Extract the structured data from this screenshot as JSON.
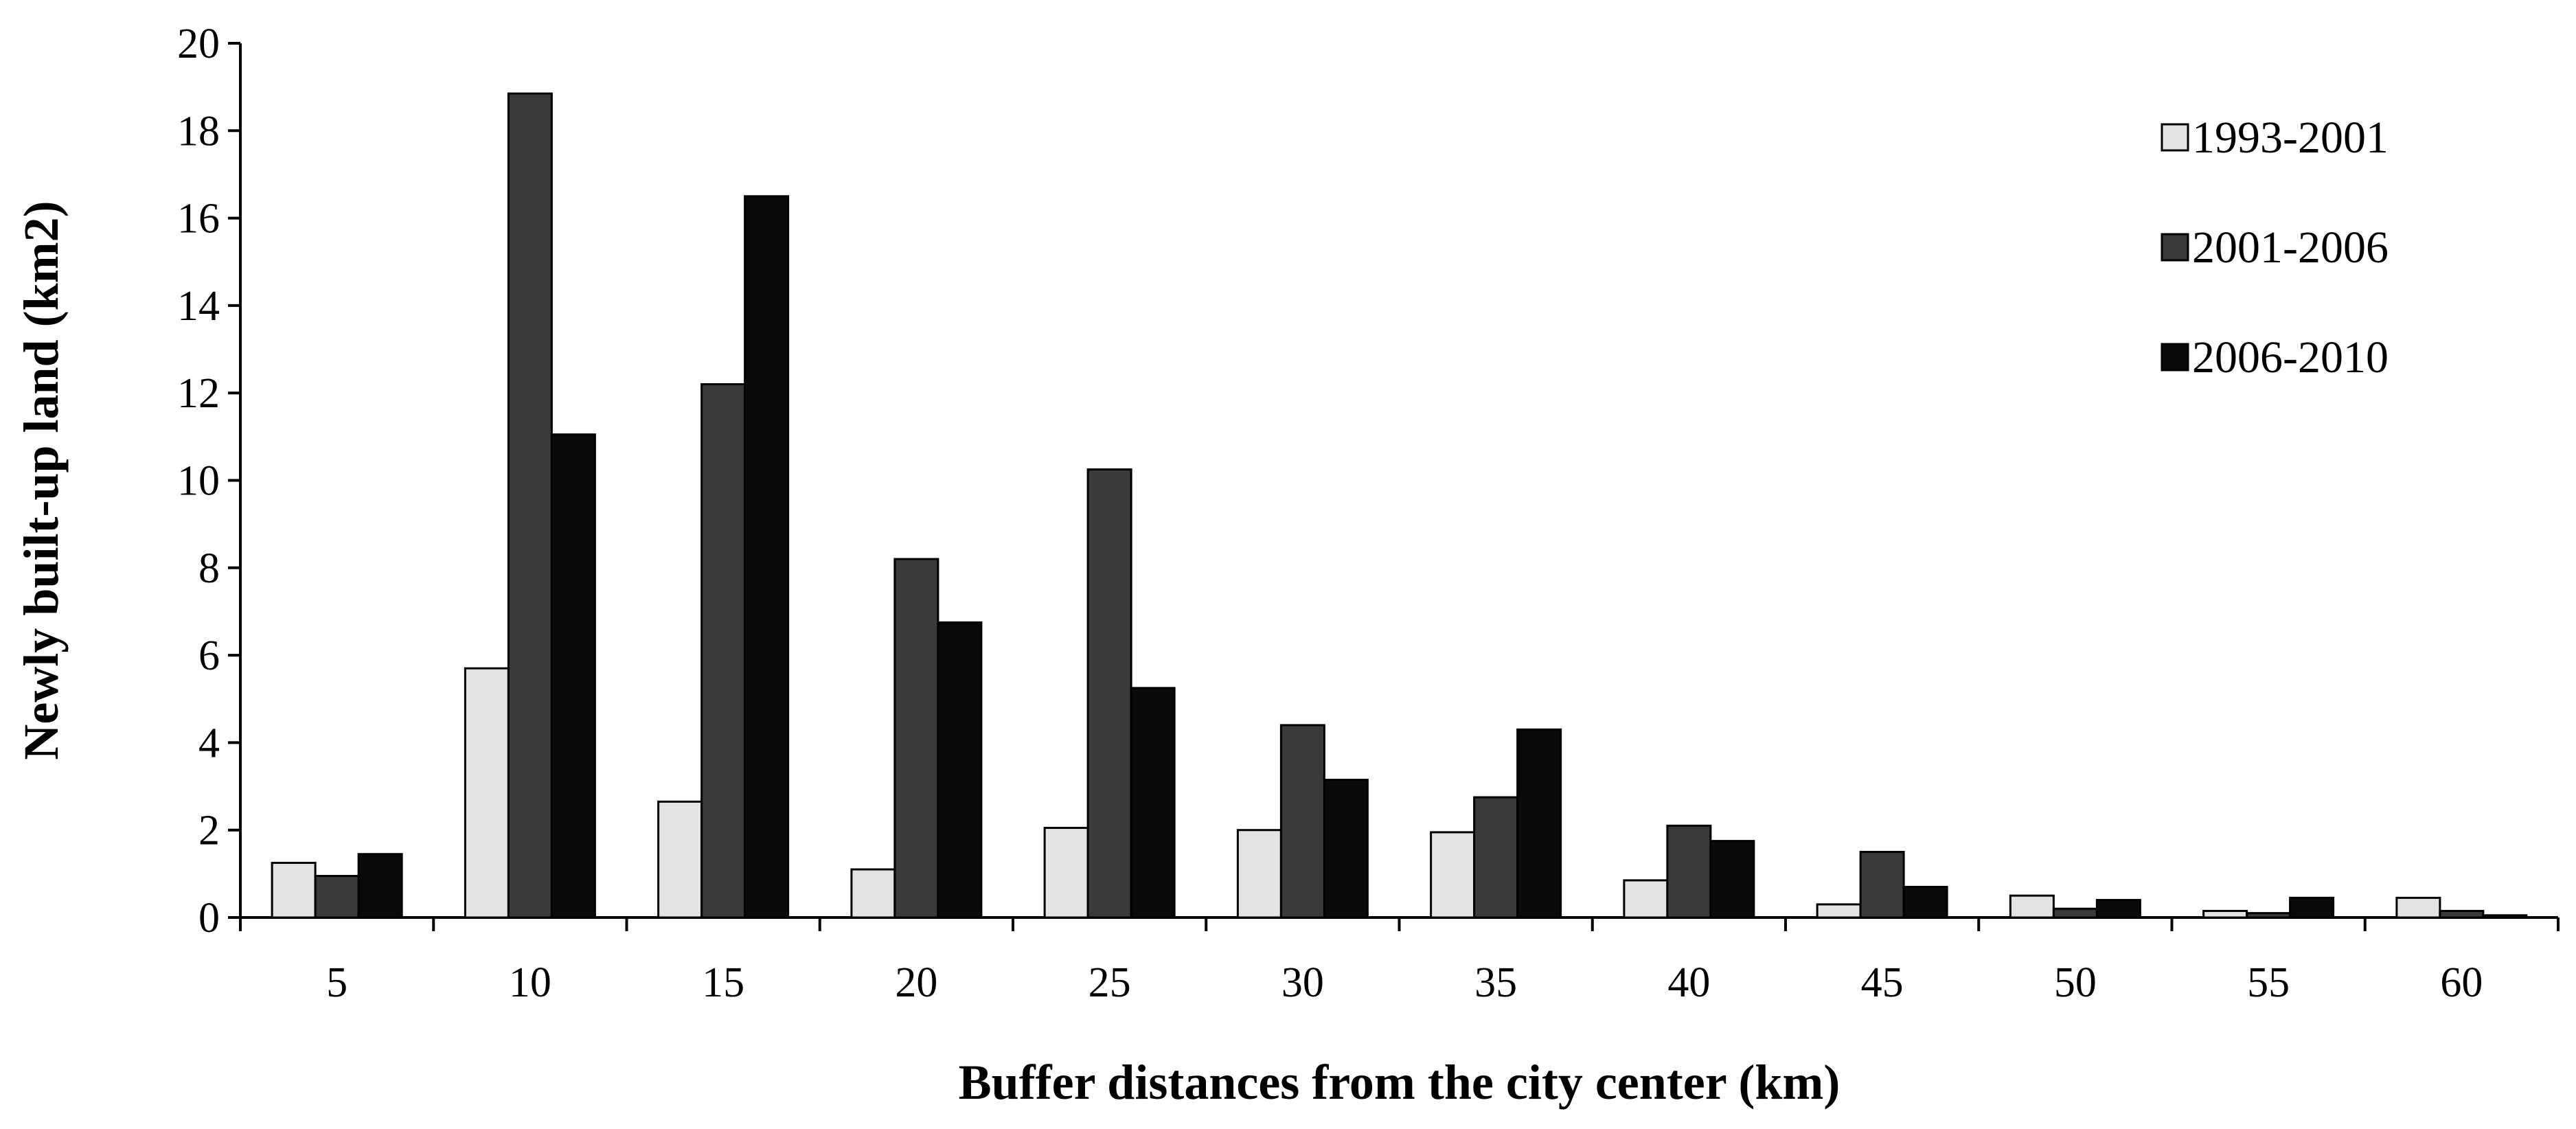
{
  "chart_data": {
    "type": "bar",
    "title": "",
    "xlabel": "Buffer distances from the city center (km)",
    "ylabel": "Newly built-up land (km2)",
    "ylim": [
      0,
      20
    ],
    "yticks": [
      "0",
      "2",
      "4",
      "6",
      "8",
      "10",
      "12",
      "14",
      "16",
      "18",
      "20"
    ],
    "categories": [
      "5",
      "10",
      "15",
      "20",
      "25",
      "30",
      "35",
      "40",
      "45",
      "50",
      "55",
      "60"
    ],
    "series": [
      {
        "name": "1993-2001",
        "color": "#e3e3e3",
        "values": [
          1.25,
          5.7,
          2.65,
          1.1,
          2.05,
          2.0,
          1.95,
          0.85,
          0.3,
          0.5,
          0.15,
          0.45
        ]
      },
      {
        "name": "2001-2006",
        "color": "#3a3a3a",
        "values": [
          0.95,
          18.85,
          12.2,
          8.2,
          10.25,
          4.4,
          2.75,
          2.1,
          1.5,
          0.2,
          0.1,
          0.15
        ]
      },
      {
        "name": "2006-2010",
        "color": "#0a0a0a",
        "values": [
          1.45,
          11.05,
          16.5,
          6.75,
          5.25,
          3.15,
          4.3,
          1.75,
          0.7,
          0.4,
          0.45,
          0.05
        ]
      }
    ],
    "grid": false,
    "legend": "top-right"
  }
}
